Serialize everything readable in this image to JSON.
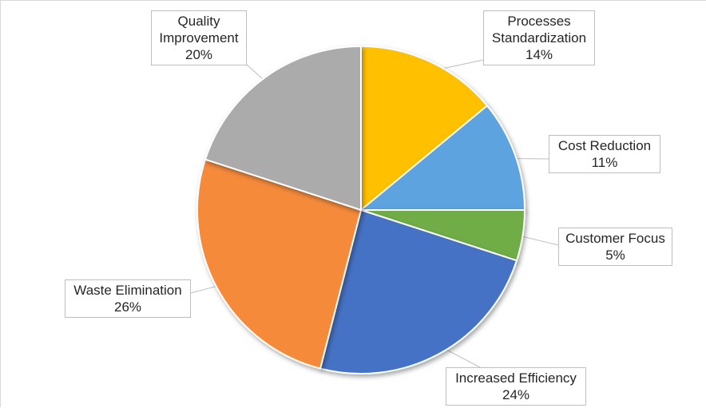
{
  "chart_data": {
    "type": "pie",
    "title": "",
    "slices": [
      {
        "label": "Processes Standardization",
        "label_lines": [
          "Processes",
          "Standardization"
        ],
        "percent_label": "14%",
        "value": 14,
        "color": "#FFC000"
      },
      {
        "label": "Cost Reduction",
        "label_lines": [
          "Cost Reduction"
        ],
        "percent_label": "11%",
        "value": 11,
        "color": "#5BA3E0"
      },
      {
        "label": "Customer Focus",
        "label_lines": [
          "Customer Focus"
        ],
        "percent_label": "5%",
        "value": 5,
        "color": "#70AD47"
      },
      {
        "label": "Increased Efficiency",
        "label_lines": [
          "Increased Efficiency"
        ],
        "percent_label": "24%",
        "value": 24,
        "color": "#4472C4"
      },
      {
        "label": "Waste Elimination",
        "label_lines": [
          "Waste Elimination"
        ],
        "percent_label": "26%",
        "value": 26,
        "color": "#F58A3A"
      },
      {
        "label": "Quality Improvement",
        "label_lines": [
          "Quality",
          "Improvement"
        ],
        "percent_label": "20%",
        "value": 20,
        "color": "#ABABAB"
      }
    ],
    "start_angle_deg": 0,
    "direction": "clockwise",
    "legend": "none",
    "data_labels": "callouts"
  }
}
